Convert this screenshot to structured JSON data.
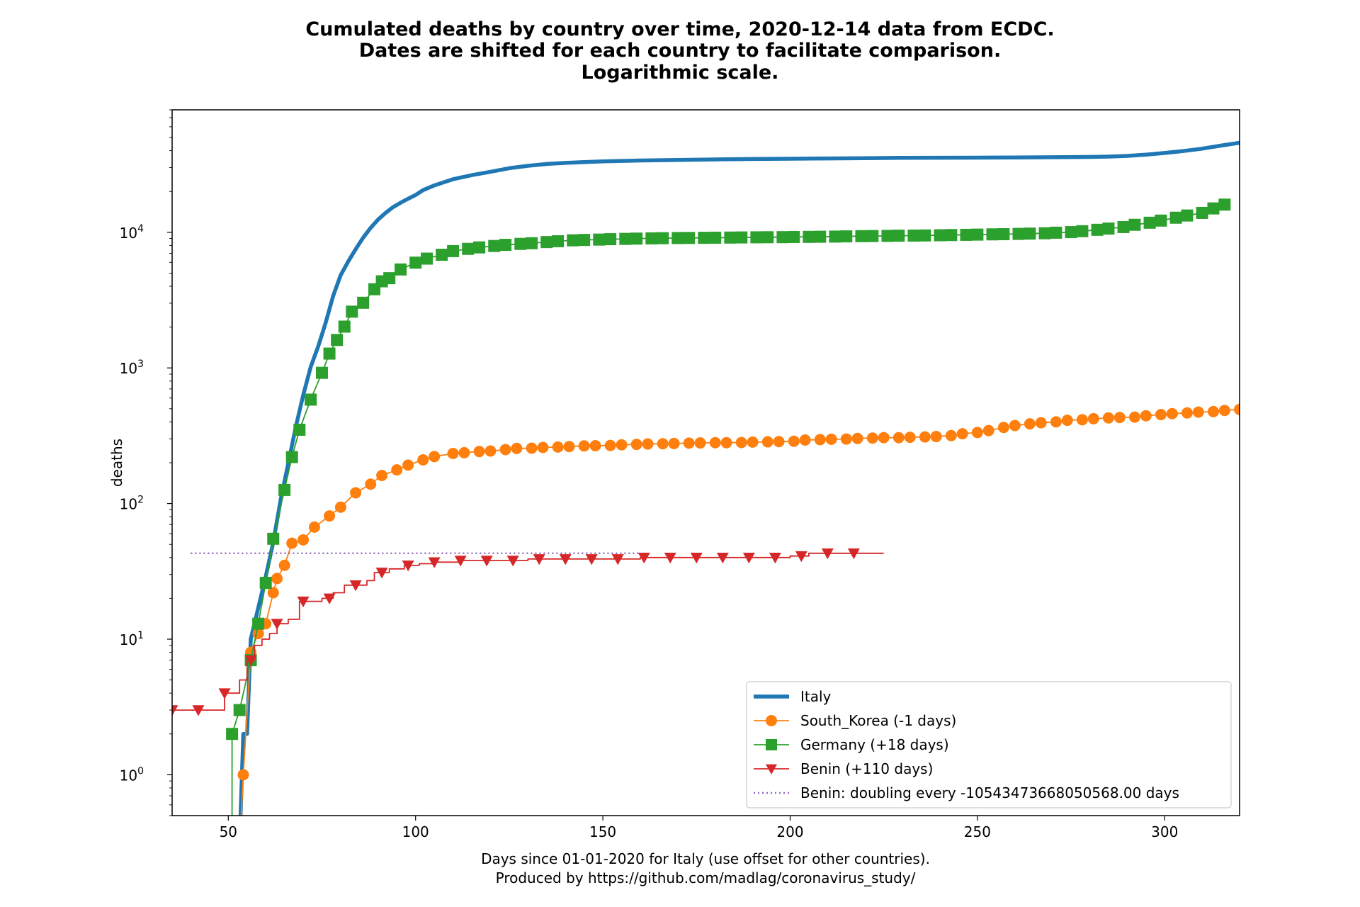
{
  "chart_data": {
    "type": "line",
    "title": [
      "Cumulated deaths by country over time, 2020-12-14 data from ECDC.",
      "Dates are shifted for each country to facilitate comparison.",
      "Logarithmic scale."
    ],
    "xlabel": [
      "Days since 01-01-2020 for Italy (use offset for other countries).",
      "Produced by https://github.com/madlag/coronavirus_study/"
    ],
    "ylabel": "deaths",
    "xlim": [
      35,
      320
    ],
    "ylim": [
      0.5,
      80000
    ],
    "yscale": "log",
    "grid": false,
    "legend_position": "lower-right",
    "x_ticks": [
      50,
      100,
      150,
      200,
      250,
      300
    ],
    "y_ticks": [
      {
        "value": 1,
        "base": "10",
        "exp": "0"
      },
      {
        "value": 10,
        "base": "10",
        "exp": "1"
      },
      {
        "value": 100,
        "base": "10",
        "exp": "2"
      },
      {
        "value": 1000,
        "base": "10",
        "exp": "3"
      },
      {
        "value": 10000,
        "base": "10",
        "exp": "4"
      }
    ],
    "series": [
      {
        "name": "Italy",
        "color": "#1f77b4",
        "style": "solid",
        "marker": "none",
        "points": [
          [
            53,
            0.3
          ],
          [
            54,
            2
          ],
          [
            55,
            2
          ],
          [
            56,
            10
          ],
          [
            58,
            17
          ],
          [
            60,
            29
          ],
          [
            62,
            52
          ],
          [
            64,
            107
          ],
          [
            66,
            197
          ],
          [
            68,
            366
          ],
          [
            70,
            631
          ],
          [
            72,
            1016
          ],
          [
            74,
            1441
          ],
          [
            76,
            2158
          ],
          [
            78,
            3405
          ],
          [
            80,
            4825
          ],
          [
            82,
            6077
          ],
          [
            84,
            7503
          ],
          [
            86,
            9134
          ],
          [
            88,
            10779
          ],
          [
            90,
            12428
          ],
          [
            92,
            13915
          ],
          [
            94,
            15362
          ],
          [
            96,
            16523
          ],
          [
            98,
            17669
          ],
          [
            100,
            18849
          ],
          [
            102,
            20465
          ],
          [
            105,
            22170
          ],
          [
            110,
            24648
          ],
          [
            115,
            26384
          ],
          [
            120,
            27967
          ],
          [
            125,
            29684
          ],
          [
            130,
            30911
          ],
          [
            135,
            31908
          ],
          [
            140,
            32486
          ],
          [
            145,
            32955
          ],
          [
            150,
            33340
          ],
          [
            155,
            33601
          ],
          [
            160,
            33846
          ],
          [
            170,
            34167
          ],
          [
            180,
            34448
          ],
          [
            190,
            34716
          ],
          [
            200,
            34899
          ],
          [
            210,
            35058
          ],
          [
            220,
            35171
          ],
          [
            230,
            35418
          ],
          [
            240,
            35473
          ],
          [
            250,
            35534
          ],
          [
            260,
            35626
          ],
          [
            270,
            35758
          ],
          [
            280,
            35941
          ],
          [
            285,
            36140
          ],
          [
            290,
            36616
          ],
          [
            295,
            37338
          ],
          [
            300,
            38442
          ],
          [
            305,
            39764
          ],
          [
            310,
            41394
          ],
          [
            315,
            43589
          ],
          [
            320,
            45733
          ]
        ]
      },
      {
        "name": "South_Korea (-1 days)",
        "color": "#ff7f0e",
        "style": "solid",
        "marker": "circle",
        "points": [
          [
            53,
            0.3
          ],
          [
            54,
            1
          ],
          [
            56,
            8
          ],
          [
            58,
            11
          ],
          [
            60,
            13
          ],
          [
            62,
            22
          ],
          [
            63,
            28
          ],
          [
            65,
            35
          ],
          [
            67,
            51
          ],
          [
            70,
            54
          ],
          [
            73,
            67
          ],
          [
            77,
            81
          ],
          [
            80,
            94
          ],
          [
            84,
            120
          ],
          [
            88,
            139
          ],
          [
            91,
            161
          ],
          [
            95,
            177
          ],
          [
            98,
            192
          ],
          [
            102,
            210
          ],
          [
            105,
            222
          ],
          [
            110,
            234
          ],
          [
            113,
            237
          ],
          [
            117,
            242
          ],
          [
            120,
            244
          ],
          [
            124,
            250
          ],
          [
            127,
            255
          ],
          [
            131,
            256
          ],
          [
            134,
            259
          ],
          [
            138,
            261
          ],
          [
            141,
            263
          ],
          [
            145,
            266
          ],
          [
            148,
            267
          ],
          [
            152,
            268
          ],
          [
            155,
            271
          ],
          [
            159,
            273
          ],
          [
            162,
            275
          ],
          [
            166,
            276
          ],
          [
            169,
            277
          ],
          [
            173,
            279
          ],
          [
            176,
            280
          ],
          [
            180,
            281
          ],
          [
            183,
            281
          ],
          [
            187,
            282
          ],
          [
            190,
            284
          ],
          [
            194,
            285
          ],
          [
            197,
            286
          ],
          [
            201,
            288
          ],
          [
            204,
            294
          ],
          [
            208,
            296
          ],
          [
            211,
            298
          ],
          [
            215,
            299
          ],
          [
            218,
            302
          ],
          [
            222,
            304
          ],
          [
            225,
            306
          ],
          [
            229,
            306
          ],
          [
            232,
            308
          ],
          [
            236,
            310
          ],
          [
            239,
            312
          ],
          [
            243,
            317
          ],
          [
            246,
            327
          ],
          [
            250,
            334
          ],
          [
            253,
            345
          ],
          [
            257,
            364
          ],
          [
            260,
            376
          ],
          [
            264,
            387
          ],
          [
            267,
            394
          ],
          [
            271,
            400
          ],
          [
            274,
            411
          ],
          [
            278,
            415
          ],
          [
            281,
            422
          ],
          [
            285,
            428
          ],
          [
            288,
            431
          ],
          [
            292,
            434
          ],
          [
            295,
            444
          ],
          [
            299,
            453
          ],
          [
            302,
            460
          ],
          [
            306,
            466
          ],
          [
            309,
            472
          ],
          [
            313,
            476
          ],
          [
            316,
            486
          ],
          [
            320,
            494
          ]
        ]
      },
      {
        "name": "Germany (+18 days)",
        "color": "#2ca02c",
        "style": "solid",
        "marker": "square",
        "points": [
          [
            51,
            0.3
          ],
          [
            51,
            2
          ],
          [
            53,
            3
          ],
          [
            56,
            7
          ],
          [
            58,
            13
          ],
          [
            60,
            26
          ],
          [
            62,
            55
          ],
          [
            65,
            126
          ],
          [
            67,
            220
          ],
          [
            69,
            350
          ],
          [
            72,
            584
          ],
          [
            75,
            920
          ],
          [
            77,
            1275
          ],
          [
            79,
            1607
          ],
          [
            81,
            2016
          ],
          [
            83,
            2600
          ],
          [
            86,
            3022
          ],
          [
            89,
            3804
          ],
          [
            91,
            4352
          ],
          [
            93,
            4586
          ],
          [
            96,
            5321
          ],
          [
            100,
            5976
          ],
          [
            103,
            6394
          ],
          [
            107,
            6831
          ],
          [
            110,
            7266
          ],
          [
            114,
            7549
          ],
          [
            117,
            7738
          ],
          [
            121,
            7928
          ],
          [
            124,
            8081
          ],
          [
            128,
            8216
          ],
          [
            131,
            8309
          ],
          [
            135,
            8470
          ],
          [
            138,
            8594
          ],
          [
            142,
            8729
          ],
          [
            145,
            8783
          ],
          [
            149,
            8835
          ],
          [
            152,
            8895
          ],
          [
            156,
            8944
          ],
          [
            159,
            8988
          ],
          [
            163,
            9022
          ],
          [
            166,
            9050
          ],
          [
            170,
            9074
          ],
          [
            173,
            9086
          ],
          [
            177,
            9108
          ],
          [
            180,
            9125
          ],
          [
            184,
            9144
          ],
          [
            187,
            9165
          ],
          [
            191,
            9183
          ],
          [
            194,
            9197
          ],
          [
            198,
            9208
          ],
          [
            201,
            9236
          ],
          [
            205,
            9252
          ],
          [
            208,
            9275
          ],
          [
            212,
            9299
          ],
          [
            215,
            9332
          ],
          [
            219,
            9370
          ],
          [
            222,
            9388
          ],
          [
            226,
            9410
          ],
          [
            229,
            9443
          ],
          [
            233,
            9456
          ],
          [
            236,
            9480
          ],
          [
            240,
            9509
          ],
          [
            243,
            9545
          ],
          [
            247,
            9578
          ],
          [
            250,
            9616
          ],
          [
            254,
            9656
          ],
          [
            257,
            9687
          ],
          [
            261,
            9733
          ],
          [
            264,
            9783
          ],
          [
            268,
            9840
          ],
          [
            271,
            9934
          ],
          [
            275,
            10032
          ],
          [
            278,
            10193
          ],
          [
            282,
            10432
          ],
          [
            285,
            10656
          ],
          [
            289,
            10930
          ],
          [
            292,
            11364
          ],
          [
            296,
            11767
          ],
          [
            299,
            12200
          ],
          [
            303,
            12814
          ],
          [
            306,
            13300
          ],
          [
            310,
            13900
          ],
          [
            313,
            15000
          ],
          [
            316,
            16000
          ]
        ]
      },
      {
        "name": "Benin (+110 days)",
        "color": "#d62728",
        "style": "steps",
        "marker": "triangle-down",
        "points": [
          [
            35,
            3
          ],
          [
            49,
            3
          ],
          [
            49,
            4
          ],
          [
            53,
            4
          ],
          [
            53,
            5
          ],
          [
            55,
            5
          ],
          [
            55,
            7
          ],
          [
            57,
            7
          ],
          [
            57,
            9
          ],
          [
            59,
            9
          ],
          [
            59,
            10
          ],
          [
            61,
            10
          ],
          [
            61,
            11
          ],
          [
            63,
            11
          ],
          [
            63,
            13
          ],
          [
            66,
            13
          ],
          [
            66,
            14
          ],
          [
            69,
            14
          ],
          [
            69,
            19
          ],
          [
            75,
            19
          ],
          [
            75,
            20
          ],
          [
            78,
            20
          ],
          [
            78,
            22
          ],
          [
            81,
            22
          ],
          [
            81,
            25
          ],
          [
            87,
            25
          ],
          [
            87,
            27
          ],
          [
            89,
            27
          ],
          [
            89,
            31
          ],
          [
            93,
            31
          ],
          [
            93,
            33
          ],
          [
            97,
            33
          ],
          [
            97,
            35
          ],
          [
            101,
            35
          ],
          [
            101,
            36
          ],
          [
            105,
            36
          ],
          [
            105,
            37
          ],
          [
            112,
            37
          ],
          [
            112,
            38
          ],
          [
            130,
            38
          ],
          [
            130,
            39
          ],
          [
            160,
            39
          ],
          [
            160,
            40
          ],
          [
            200,
            40
          ],
          [
            200,
            41
          ],
          [
            205,
            41
          ],
          [
            205,
            43
          ],
          [
            225,
            43
          ]
        ]
      },
      {
        "name": "Benin: doubling every -10543473668050568.00 days",
        "color": "#9467bd",
        "style": "dotted",
        "marker": "none",
        "points": [
          [
            40,
            43
          ],
          [
            160,
            43
          ]
        ]
      }
    ]
  }
}
